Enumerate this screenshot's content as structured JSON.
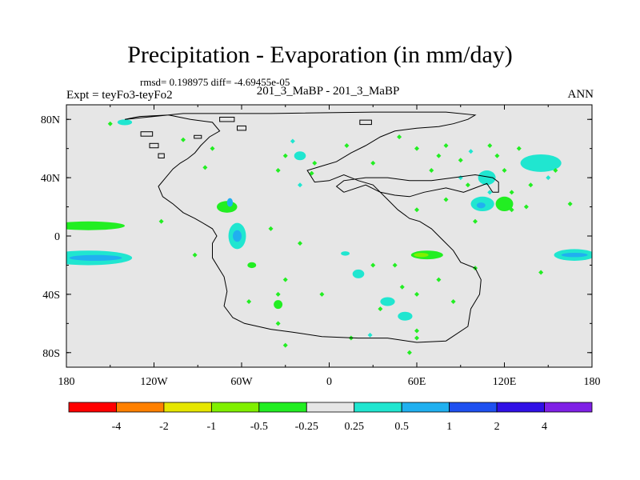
{
  "title": "Precipitation - Evaporation (in mm/day)",
  "stats": "rmsd= 0.198975 diff= -4.69455e-05",
  "left_label": "Expt = teyFo3-teyFo2",
  "center_label": "201_3_MaBP - 201_3_MaBP",
  "right_label": "ANN",
  "chart_data": {
    "type": "contour-map",
    "title": "Precipitation - Evaporation (in mm/day)",
    "units": "mm/day",
    "xlim": [
      -180,
      180
    ],
    "ylim": [
      -90,
      90
    ],
    "x_ticks": [
      {
        "value": -180,
        "label": "180"
      },
      {
        "value": -120,
        "label": "120W"
      },
      {
        "value": -60,
        "label": "60W"
      },
      {
        "value": 0,
        "label": "0"
      },
      {
        "value": 60,
        "label": "60E"
      },
      {
        "value": 120,
        "label": "120E"
      },
      {
        "value": 180,
        "label": "180"
      }
    ],
    "y_ticks": [
      {
        "value": 80,
        "label": "80N"
      },
      {
        "value": 40,
        "label": "40N"
      },
      {
        "value": 0,
        "label": "0"
      },
      {
        "value": -40,
        "label": "40S"
      },
      {
        "value": -80,
        "label": "80S"
      }
    ],
    "colorbar": {
      "labels": [
        "-4",
        "-2",
        "-1",
        "-0.5",
        "-0.25",
        "0.25",
        "0.5",
        "1",
        "2",
        "4"
      ],
      "colors": [
        "#ff0000",
        "#ff8000",
        "#e6e600",
        "#80f000",
        "#22ee22",
        "#e6e6e6",
        "#20e6d0",
        "#20b0f0",
        "#1e50f0",
        "#3010e6",
        "#7f20e6"
      ]
    },
    "background_color": "#e6e6e6",
    "anomaly_regions": [
      {
        "lon": -165,
        "lat": 7,
        "w": 25,
        "h": 3,
        "bin": 4
      },
      {
        "lon": -165,
        "lat": -15,
        "w": 30,
        "h": 5,
        "bin": 6
      },
      {
        "lon": -160,
        "lat": -15,
        "w": 18,
        "h": 2,
        "bin": 7
      },
      {
        "lon": -70,
        "lat": 20,
        "w": 7,
        "h": 4,
        "bin": 4
      },
      {
        "lon": -68,
        "lat": 23,
        "w": 2,
        "h": 3,
        "bin": 7
      },
      {
        "lon": -63,
        "lat": 0,
        "w": 6,
        "h": 9,
        "bin": 6
      },
      {
        "lon": -63,
        "lat": 0,
        "w": 3,
        "h": 4,
        "bin": 7
      },
      {
        "lon": -53,
        "lat": -20,
        "w": 3,
        "h": 2,
        "bin": 4
      },
      {
        "lon": 11,
        "lat": -12,
        "w": 3,
        "h": 1.5,
        "bin": 6
      },
      {
        "lon": 67,
        "lat": -13,
        "w": 11,
        "h": 3,
        "bin": 4
      },
      {
        "lon": 63,
        "lat": -13,
        "w": 5,
        "h": 1.5,
        "bin": 3
      },
      {
        "lon": 168,
        "lat": -13,
        "w": 14,
        "h": 4,
        "bin": 6
      },
      {
        "lon": 168,
        "lat": -13,
        "w": 9,
        "h": 1.5,
        "bin": 7
      },
      {
        "lon": 105,
        "lat": 22,
        "w": 8,
        "h": 5,
        "bin": 6
      },
      {
        "lon": 104,
        "lat": 21,
        "w": 3,
        "h": 2,
        "bin": 7
      },
      {
        "lon": 145,
        "lat": 50,
        "w": 14,
        "h": 6,
        "bin": 6
      },
      {
        "lon": 120,
        "lat": 22,
        "w": 6,
        "h": 5,
        "bin": 4
      },
      {
        "lon": 108,
        "lat": 40,
        "w": 6,
        "h": 5,
        "bin": 6
      },
      {
        "lon": -35,
        "lat": -47,
        "w": 3,
        "h": 3,
        "bin": 4
      },
      {
        "lon": 20,
        "lat": -26,
        "w": 4,
        "h": 3,
        "bin": 6
      },
      {
        "lon": 40,
        "lat": -45,
        "w": 5,
        "h": 3,
        "bin": 6
      },
      {
        "lon": 52,
        "lat": -55,
        "w": 5,
        "h": 3,
        "bin": 6
      },
      {
        "lon": -20,
        "lat": 55,
        "w": 4,
        "h": 3,
        "bin": 6
      },
      {
        "lon": -140,
        "lat": 78,
        "w": 5,
        "h": 2,
        "bin": 6
      }
    ],
    "small_speckles": [
      [
        -150,
        77,
        4
      ],
      [
        -100,
        66,
        4
      ],
      [
        -80,
        60,
        4
      ],
      [
        -85,
        47,
        4
      ],
      [
        -30,
        55,
        4
      ],
      [
        -35,
        45,
        4
      ],
      [
        -10,
        50,
        4
      ],
      [
        -12,
        43,
        4
      ],
      [
        -20,
        35,
        6
      ],
      [
        -25,
        65,
        6
      ],
      [
        12,
        62,
        4
      ],
      [
        30,
        50,
        4
      ],
      [
        48,
        68,
        4
      ],
      [
        60,
        60,
        4
      ],
      [
        70,
        45,
        4
      ],
      [
        75,
        55,
        4
      ],
      [
        80,
        62,
        4
      ],
      [
        90,
        52,
        4
      ],
      [
        97,
        58,
        6
      ],
      [
        110,
        62,
        4
      ],
      [
        115,
        55,
        4
      ],
      [
        130,
        60,
        4
      ],
      [
        90,
        40,
        6
      ],
      [
        95,
        35,
        4
      ],
      [
        120,
        45,
        4
      ],
      [
        125,
        30,
        4
      ],
      [
        135,
        20,
        4
      ],
      [
        125,
        18,
        4
      ],
      [
        138,
        35,
        4
      ],
      [
        165,
        22,
        4
      ],
      [
        -35,
        -40,
        4
      ],
      [
        -30,
        -30,
        4
      ],
      [
        30,
        -20,
        4
      ],
      [
        45,
        -20,
        4
      ],
      [
        50,
        -35,
        4
      ],
      [
        60,
        -40,
        4
      ],
      [
        75,
        -30,
        4
      ],
      [
        85,
        -45,
        4
      ],
      [
        35,
        -50,
        4
      ],
      [
        15,
        -70,
        4
      ],
      [
        28,
        -68,
        6
      ],
      [
        60,
        -65,
        4
      ],
      [
        100,
        -22,
        4
      ],
      [
        145,
        -25,
        4
      ],
      [
        -40,
        5,
        4
      ],
      [
        -20,
        -5,
        4
      ],
      [
        -5,
        -40,
        4
      ],
      [
        -55,
        -45,
        4
      ],
      [
        -35,
        -60,
        4
      ],
      [
        -30,
        -75,
        4
      ],
      [
        60,
        -70,
        4
      ],
      [
        55,
        -80,
        4
      ],
      [
        -92,
        -13,
        4
      ],
      [
        -115,
        10,
        4
      ],
      [
        60,
        18,
        4
      ],
      [
        80,
        25,
        4
      ],
      [
        100,
        10,
        4
      ],
      [
        110,
        30,
        6
      ],
      [
        150,
        40,
        6
      ],
      [
        155,
        45,
        4
      ]
    ],
    "coastline": [
      [
        -140,
        80
      ],
      [
        -130,
        82
      ],
      [
        -110,
        83
      ],
      [
        -95,
        80
      ],
      [
        -80,
        78
      ],
      [
        -75,
        72
      ],
      [
        -82,
        68
      ],
      [
        -88,
        62
      ],
      [
        -92,
        57
      ],
      [
        -97,
        53
      ],
      [
        -102,
        50
      ],
      [
        -107,
        46
      ],
      [
        -112,
        40
      ],
      [
        -117,
        34
      ],
      [
        -114,
        27
      ],
      [
        -107,
        22
      ],
      [
        -100,
        16
      ],
      [
        -92,
        12
      ],
      [
        -85,
        8
      ],
      [
        -80,
        5
      ],
      [
        -77,
        0
      ],
      [
        -80,
        -5
      ],
      [
        -80,
        -15
      ],
      [
        -72,
        -28
      ],
      [
        -70,
        -38
      ],
      [
        -72,
        -48
      ],
      [
        -66,
        -56
      ],
      [
        -58,
        -60
      ],
      [
        -40,
        -64
      ],
      [
        -25,
        -66
      ],
      [
        -5,
        -69
      ],
      [
        20,
        -70
      ],
      [
        40,
        -70
      ],
      [
        60,
        -73
      ],
      [
        80,
        -72
      ],
      [
        95,
        -62
      ],
      [
        97,
        -50
      ],
      [
        103,
        -40
      ],
      [
        104,
        -30
      ],
      [
        100,
        -22
      ],
      [
        90,
        -18
      ],
      [
        85,
        -10
      ],
      [
        78,
        -3
      ],
      [
        70,
        5
      ],
      [
        62,
        10
      ],
      [
        55,
        12
      ],
      [
        47,
        18
      ],
      [
        40,
        25
      ],
      [
        35,
        30
      ],
      [
        30,
        35
      ],
      [
        20,
        38
      ],
      [
        10,
        42
      ],
      [
        0,
        38
      ],
      [
        -10,
        37
      ],
      [
        -15,
        45
      ],
      [
        -5,
        48
      ],
      [
        5,
        51
      ],
      [
        15,
        57
      ],
      [
        25,
        62
      ],
      [
        35,
        68
      ],
      [
        45,
        72
      ],
      [
        60,
        74
      ],
      [
        75,
        75
      ],
      [
        85,
        77
      ],
      [
        95,
        80
      ],
      [
        100,
        83
      ],
      [
        80,
        85
      ],
      [
        30,
        85
      ],
      [
        -40,
        84
      ],
      [
        -100,
        84
      ],
      [
        -140,
        80
      ]
    ],
    "interior_outline": [
      [
        10,
        30
      ],
      [
        25,
        35
      ],
      [
        35,
        30
      ],
      [
        45,
        28
      ],
      [
        55,
        27
      ],
      [
        65,
        30
      ],
      [
        80,
        33
      ],
      [
        92,
        30
      ],
      [
        100,
        33
      ],
      [
        108,
        36
      ],
      [
        112,
        30
      ],
      [
        116,
        30
      ],
      [
        116,
        37
      ],
      [
        112,
        40
      ],
      [
        100,
        42
      ],
      [
        85,
        40
      ],
      [
        70,
        38
      ],
      [
        55,
        38
      ],
      [
        40,
        40
      ],
      [
        25,
        40
      ],
      [
        10,
        38
      ],
      [
        5,
        34
      ],
      [
        10,
        30
      ]
    ],
    "islands": [
      [
        -125,
        70,
        8,
        3
      ],
      [
        -120,
        62,
        6,
        3
      ],
      [
        -115,
        55,
        4,
        3
      ],
      [
        -90,
        68,
        5,
        2
      ],
      [
        -70,
        80,
        10,
        3
      ],
      [
        25,
        78,
        8,
        3
      ],
      [
        -60,
        74,
        6,
        3
      ]
    ]
  }
}
